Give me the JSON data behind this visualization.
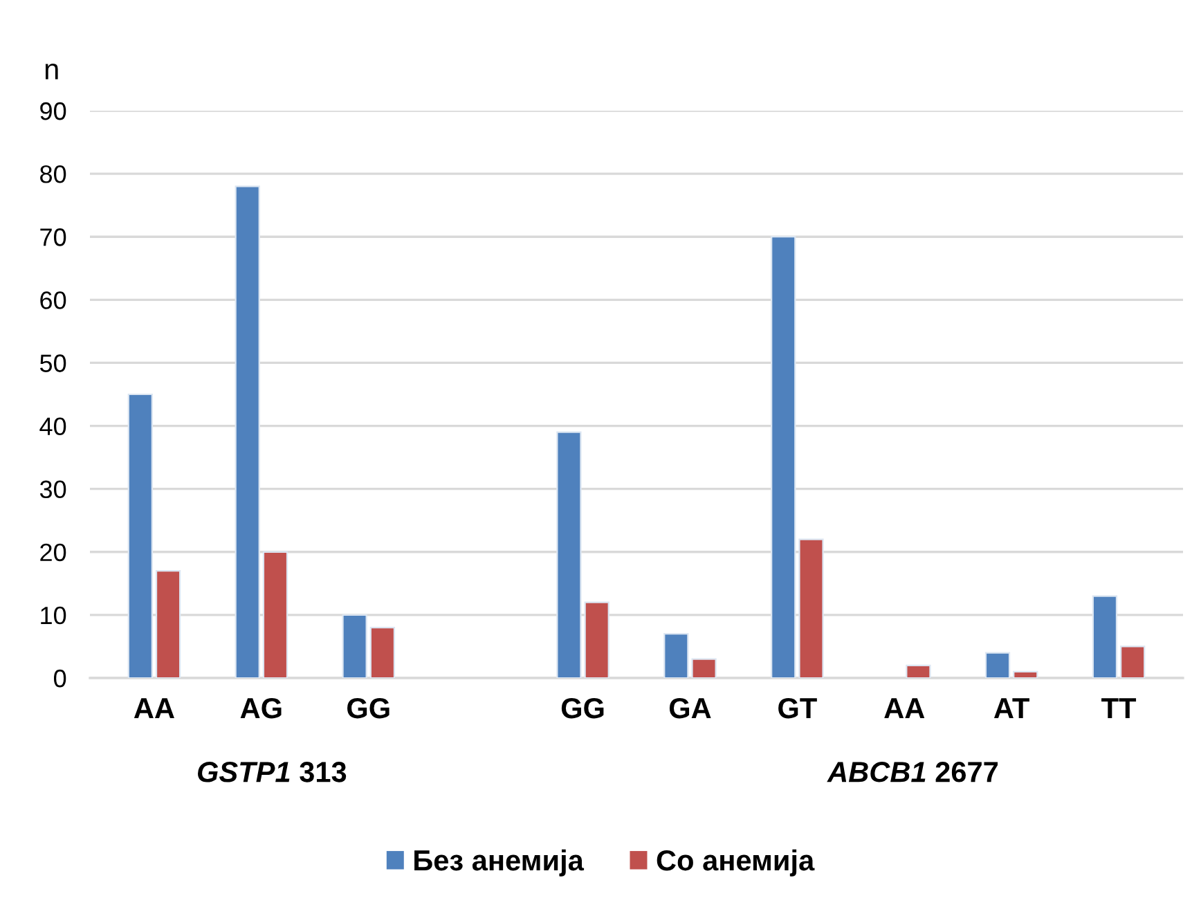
{
  "chart_data": {
    "type": "bar",
    "ylabel": "n",
    "categories": [
      "AA",
      "AG",
      "GG",
      null,
      "GG",
      "GA",
      "GT",
      "AA",
      "AT",
      "TT"
    ],
    "series": [
      {
        "name": "Без анемија",
        "color": "#4f81bd",
        "values": [
          45,
          78,
          10,
          null,
          39,
          7,
          70,
          0,
          4,
          13
        ]
      },
      {
        "name": "Со анемија",
        "color": "#c0504d",
        "values": [
          17,
          20,
          8,
          null,
          12,
          3,
          22,
          2,
          1,
          5
        ]
      }
    ],
    "ylim": [
      0,
      90
    ],
    "yticks": [
      0,
      10,
      20,
      30,
      40,
      50,
      60,
      70,
      80,
      90
    ],
    "grid": "y",
    "legend": "bottom",
    "annotations": [
      "GSTP1 313",
      "ABCB1 2677"
    ]
  }
}
